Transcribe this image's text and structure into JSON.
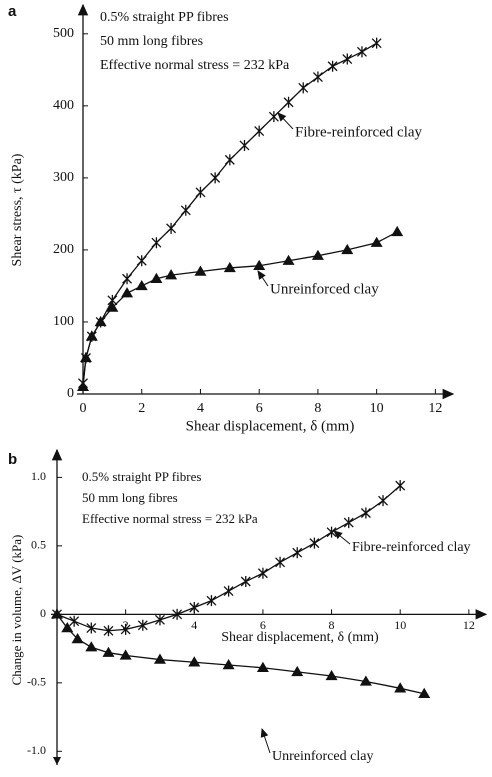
{
  "chart_data": [
    {
      "type": "line",
      "panel_label": "a",
      "annotations": [
        "0.5% straight PP fibres",
        "50 mm long fibres",
        "Effective normal stress = 232 kPa"
      ],
      "xlabel": "Shear displacement, δ (mm)",
      "ylabel": "Shear stress, τ (kPa)",
      "xlim": [
        0,
        12.6
      ],
      "ylim": [
        0,
        540
      ],
      "xticks": [
        0,
        2,
        4,
        6,
        8,
        10,
        12
      ],
      "yticks": [
        0,
        100,
        200,
        300,
        400,
        500
      ],
      "series": [
        {
          "name": "Fibre-reinforced clay",
          "color": "#111111",
          "marker": "x",
          "x": [
            0,
            0.1,
            0.3,
            0.6,
            1,
            1.5,
            2,
            2.5,
            3,
            3.5,
            4,
            4.5,
            5,
            5.5,
            6,
            6.5,
            7,
            7.5,
            8,
            8.5,
            9,
            9.5,
            10
          ],
          "values": [
            15,
            50,
            80,
            100,
            130,
            160,
            185,
            210,
            230,
            255,
            280,
            300,
            325,
            345,
            365,
            385,
            405,
            425,
            440,
            455,
            465,
            475,
            487
          ]
        },
        {
          "name": "Unreinforced clay",
          "color": "#111111",
          "marker": "triangle",
          "x": [
            0,
            0.1,
            0.3,
            0.6,
            1,
            1.5,
            2,
            2.5,
            3,
            4,
            5,
            6,
            7,
            8,
            9,
            10,
            10.7
          ],
          "values": [
            10,
            50,
            80,
            100,
            120,
            140,
            150,
            160,
            165,
            170,
            175,
            178,
            185,
            192,
            200,
            210,
            225
          ]
        }
      ]
    },
    {
      "type": "line",
      "panel_label": "b",
      "annotations": [
        "0.5% straight PP fibres",
        "50 mm long fibres",
        "Effective normal stress = 232 kPa"
      ],
      "xlabel": "Shear displacement, δ (mm)",
      "ylabel": "Change in volume, ΔV (kPa)",
      "xlim": [
        0,
        12.5
      ],
      "ylim": [
        -1.1,
        1.2
      ],
      "xticks": [
        2,
        4,
        6,
        8,
        10,
        12
      ],
      "yticks": [
        {
          "value": 1,
          "label": "1.0"
        },
        0.5,
        0,
        -0.5,
        {
          "value": -1,
          "label": "-1.0"
        }
      ],
      "series": [
        {
          "name": "Fibre-reinforced clay",
          "color": "#111111",
          "marker": "x",
          "x": [
            0,
            0.5,
            1,
            1.5,
            2,
            2.5,
            3,
            3.5,
            4,
            4.5,
            5,
            5.5,
            6,
            6.5,
            7,
            7.5,
            8,
            8.5,
            9,
            9.5,
            10
          ],
          "values": [
            0,
            -0.05,
            -0.1,
            -0.12,
            -0.11,
            -0.08,
            -0.04,
            0,
            0.05,
            0.1,
            0.17,
            0.24,
            0.3,
            0.38,
            0.45,
            0.52,
            0.6,
            0.67,
            0.74,
            0.83,
            0.94
          ]
        },
        {
          "name": "Unreinforced clay",
          "color": "#111111",
          "marker": "triangle",
          "x": [
            0,
            0.3,
            0.6,
            1,
            1.5,
            2,
            3,
            4,
            5,
            6,
            7,
            8,
            9,
            10,
            10.7
          ],
          "values": [
            0,
            -0.1,
            -0.18,
            -0.24,
            -0.28,
            -0.3,
            -0.33,
            -0.35,
            -0.37,
            -0.39,
            -0.42,
            -0.45,
            -0.49,
            -0.54,
            -0.58
          ]
        }
      ]
    }
  ]
}
